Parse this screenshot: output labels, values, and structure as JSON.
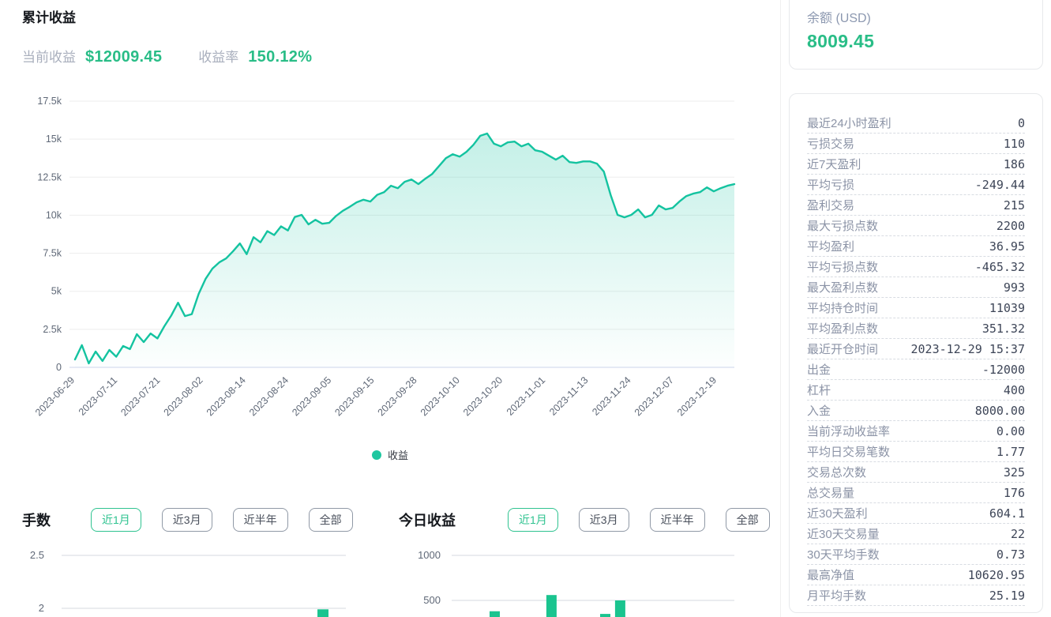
{
  "header": {
    "title": "累计收益",
    "current_label": "当前收益",
    "current_value": "$12009.45",
    "rate_label": "收益率",
    "rate_value": "150.12%"
  },
  "legend": {
    "label": "收益"
  },
  "balance_card": {
    "label": "余额 (USD)",
    "value": "8009.45"
  },
  "stats": [
    {
      "label": "最近24小时盈利",
      "value": "0"
    },
    {
      "label": "亏损交易",
      "value": "110"
    },
    {
      "label": "近7天盈利",
      "value": "186"
    },
    {
      "label": "平均亏损",
      "value": "-249.44"
    },
    {
      "label": "盈利交易",
      "value": "215"
    },
    {
      "label": "最大亏损点数",
      "value": "2200"
    },
    {
      "label": "平均盈利",
      "value": "36.95"
    },
    {
      "label": "平均亏损点数",
      "value": "-465.32"
    },
    {
      "label": "最大盈利点数",
      "value": "993"
    },
    {
      "label": "平均持仓时间",
      "value": "11039"
    },
    {
      "label": "平均盈利点数",
      "value": "351.32"
    },
    {
      "label": "最近开仓时间",
      "value": "2023-12-29 15:37"
    },
    {
      "label": "出金",
      "value": "-12000"
    },
    {
      "label": "杠杆",
      "value": "400"
    },
    {
      "label": "入金",
      "value": "8000.00"
    },
    {
      "label": "当前浮动收益率",
      "value": "0.00"
    },
    {
      "label": "平均日交易笔数",
      "value": "1.77"
    },
    {
      "label": "交易总次数",
      "value": "325"
    },
    {
      "label": "总交易量",
      "value": "176"
    },
    {
      "label": "近30天盈利",
      "value": "604.1"
    },
    {
      "label": "近30天交易量",
      "value": "22"
    },
    {
      "label": "30天平均手数",
      "value": "0.73"
    },
    {
      "label": "最高净值",
      "value": "10620.95"
    },
    {
      "label": "月平均手数",
      "value": "25.19"
    }
  ],
  "lots_section": {
    "title": "手数",
    "tabs": [
      {
        "key": "1m",
        "label": "近1月",
        "active": true
      },
      {
        "key": "3m",
        "label": "近3月",
        "active": false
      },
      {
        "key": "6m",
        "label": "近半年",
        "active": false
      },
      {
        "key": "all",
        "label": "全部",
        "active": false
      }
    ]
  },
  "today_section": {
    "title": "今日收益",
    "tabs": [
      {
        "key": "1m",
        "label": "近1月",
        "active": true
      },
      {
        "key": "3m",
        "label": "近3月",
        "active": false
      },
      {
        "key": "6m",
        "label": "近半年",
        "active": false
      },
      {
        "key": "all",
        "label": "全部",
        "active": false
      }
    ]
  },
  "colors": {
    "accent_text": "#29bd87",
    "line": "#14c3a0",
    "bar": "#1ac48f",
    "grid": "#ededed",
    "axis_line": "#ccd6eb",
    "tick_text": "#66707f"
  },
  "chart_data": [
    {
      "type": "area",
      "title": "累计收益",
      "ylabel": "",
      "xlabel": "",
      "ylim": [
        0,
        17500
      ],
      "y_tick_values": [
        17500,
        15000,
        12500,
        10000,
        7500,
        5000,
        2500,
        0
      ],
      "y_tick_labels": [
        "17.5k",
        "15k",
        "12.5k",
        "10k",
        "7.5k",
        "5k",
        "2.5k",
        "0"
      ],
      "x_tick_labels": [
        "2023-06-29",
        "2023-07-11",
        "2023-07-21",
        "2023-08-02",
        "2023-08-14",
        "2023-08-24",
        "2023-09-05",
        "2023-09-15",
        "2023-09-28",
        "2023-10-10",
        "2023-10-20",
        "2023-11-01",
        "2023-11-13",
        "2023-11-24",
        "2023-12-07",
        "2023-12-19"
      ],
      "legend_position": "bottom",
      "grid": "horizontal",
      "series": [
        {
          "name": "收益",
          "values": [
            520,
            1460,
            260,
            1040,
            420,
            1140,
            700,
            1400,
            1200,
            2180,
            1660,
            2230,
            1900,
            2700,
            3400,
            4250,
            3370,
            3500,
            4830,
            5810,
            6490,
            6900,
            7160,
            7630,
            8150,
            7440,
            8560,
            8220,
            8950,
            8700,
            9270,
            9000,
            9880,
            10020,
            9400,
            9700,
            9440,
            9500,
            9950,
            10290,
            10550,
            10850,
            11020,
            10900,
            11340,
            11520,
            11940,
            11780,
            12200,
            12350,
            12050,
            12400,
            12710,
            13230,
            13750,
            14010,
            13850,
            14170,
            14630,
            15220,
            15370,
            14700,
            14530,
            14790,
            14840,
            14530,
            14700,
            14270,
            14170,
            13910,
            13650,
            13910,
            13490,
            13440,
            13540,
            13540,
            13390,
            12870,
            11320,
            10020,
            9860,
            10020,
            10380,
            9860,
            10020,
            10640,
            10380,
            10480,
            10900,
            11260,
            11420,
            11520,
            11830,
            11570,
            11780,
            11940,
            12040
          ]
        }
      ]
    },
    {
      "type": "bar",
      "title": "手数",
      "visible_y_tick_labels": [
        "2.5",
        "2"
      ],
      "visible_y_tick_values": [
        2.5,
        2
      ],
      "bars": [
        {
          "x_frac": 0.9,
          "value": 1.99
        }
      ]
    },
    {
      "type": "bar",
      "title": "今日收益",
      "visible_y_tick_labels": [
        "1000",
        "500"
      ],
      "visible_y_tick_values": [
        1000,
        500
      ],
      "bars": [
        {
          "x_frac": 0.134,
          "value": 380
        },
        {
          "x_frac": 0.335,
          "value": 560
        },
        {
          "x_frac": 0.525,
          "value": 350
        },
        {
          "x_frac": 0.578,
          "value": 500
        }
      ]
    }
  ]
}
